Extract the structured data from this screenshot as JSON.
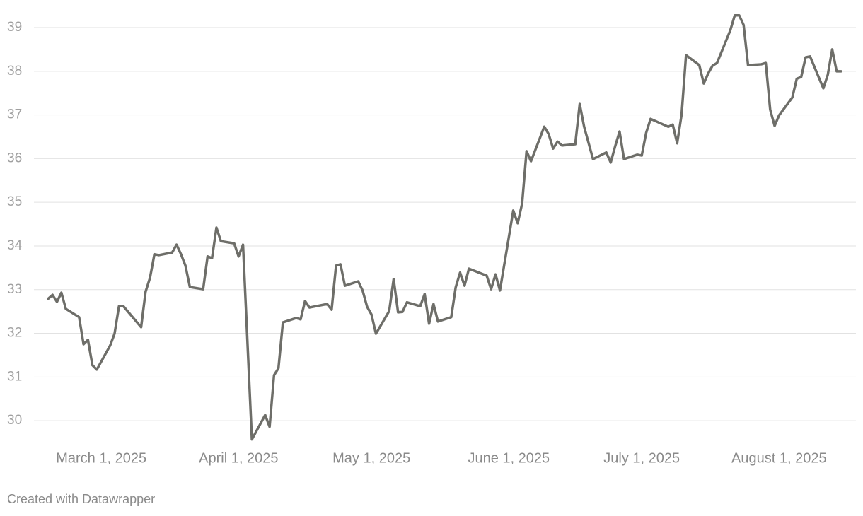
{
  "chart_data": {
    "type": "line",
    "x": [
      "2025-02-17",
      "2025-02-18",
      "2025-02-19",
      "2025-02-20",
      "2025-02-21",
      "2025-02-24",
      "2025-02-25",
      "2025-02-26",
      "2025-02-27",
      "2025-02-28",
      "2025-03-03",
      "2025-03-04",
      "2025-03-05",
      "2025-03-06",
      "2025-03-10",
      "2025-03-11",
      "2025-03-12",
      "2025-03-13",
      "2025-03-14",
      "2025-03-17",
      "2025-03-18",
      "2025-03-19",
      "2025-03-20",
      "2025-03-21",
      "2025-03-24",
      "2025-03-25",
      "2025-03-26",
      "2025-03-27",
      "2025-03-28",
      "2025-03-31",
      "2025-04-01",
      "2025-04-02",
      "2025-04-04",
      "2025-04-07",
      "2025-04-08",
      "2025-04-09",
      "2025-04-10",
      "2025-04-11",
      "2025-04-14",
      "2025-04-15",
      "2025-04-16",
      "2025-04-17",
      "2025-04-21",
      "2025-04-22",
      "2025-04-23",
      "2025-04-24",
      "2025-04-25",
      "2025-04-28",
      "2025-04-29",
      "2025-04-30",
      "2025-05-01",
      "2025-05-02",
      "2025-05-05",
      "2025-05-06",
      "2025-05-07",
      "2025-05-08",
      "2025-05-09",
      "2025-05-12",
      "2025-05-13",
      "2025-05-14",
      "2025-05-15",
      "2025-05-16",
      "2025-05-19",
      "2025-05-20",
      "2025-05-21",
      "2025-05-22",
      "2025-05-23",
      "2025-05-27",
      "2025-05-28",
      "2025-05-29",
      "2025-05-30",
      "2025-06-02",
      "2025-06-03",
      "2025-06-04",
      "2025-06-05",
      "2025-06-06",
      "2025-06-09",
      "2025-06-10",
      "2025-06-11",
      "2025-06-12",
      "2025-06-13",
      "2025-06-16",
      "2025-06-17",
      "2025-06-18",
      "2025-06-20",
      "2025-06-23",
      "2025-06-24",
      "2025-06-25",
      "2025-06-26",
      "2025-06-27",
      "2025-06-30",
      "2025-07-01",
      "2025-07-02",
      "2025-07-03",
      "2025-07-07",
      "2025-07-08",
      "2025-07-09",
      "2025-07-10",
      "2025-07-11",
      "2025-07-14",
      "2025-07-15",
      "2025-07-16",
      "2025-07-17",
      "2025-07-18",
      "2025-07-21",
      "2025-07-22",
      "2025-07-23",
      "2025-07-24",
      "2025-07-25",
      "2025-07-28",
      "2025-07-29",
      "2025-07-30",
      "2025-07-31",
      "2025-08-01",
      "2025-08-04",
      "2025-08-05",
      "2025-08-06",
      "2025-08-07",
      "2025-08-08",
      "2025-08-11",
      "2025-08-12",
      "2025-08-13",
      "2025-08-14",
      "2025-08-15"
    ],
    "values": [
      32.79,
      32.88,
      32.72,
      32.93,
      32.56,
      32.37,
      31.75,
      31.85,
      31.27,
      31.17,
      31.72,
      31.99,
      32.62,
      32.62,
      32.14,
      32.95,
      33.27,
      33.81,
      33.79,
      33.85,
      34.03,
      33.81,
      33.55,
      33.06,
      33.01,
      33.76,
      33.72,
      34.42,
      34.11,
      34.06,
      33.76,
      34.03,
      29.57,
      30.13,
      29.86,
      31.04,
      31.2,
      32.25,
      32.35,
      32.32,
      32.74,
      32.59,
      32.67,
      32.54,
      33.55,
      33.58,
      33.09,
      33.19,
      32.98,
      32.61,
      32.43,
      31.99,
      32.51,
      33.24,
      32.48,
      32.49,
      32.71,
      32.62,
      32.9,
      32.22,
      32.67,
      32.27,
      32.37,
      33.05,
      33.39,
      33.09,
      33.48,
      33.32,
      33.01,
      33.35,
      32.98,
      34.81,
      34.52,
      34.97,
      36.17,
      35.94,
      36.73,
      36.56,
      36.23,
      36.39,
      36.3,
      36.33,
      37.25,
      36.73,
      35.99,
      36.14,
      35.91,
      36.28,
      36.62,
      35.99,
      36.09,
      36.07,
      36.59,
      36.91,
      36.73,
      36.78,
      36.35,
      37.01,
      38.37,
      38.14,
      37.72,
      37.95,
      38.13,
      38.19,
      38.94,
      39.28,
      39.28,
      39.06,
      38.14,
      38.16,
      38.19,
      37.12,
      36.75,
      36.99,
      37.4,
      37.83,
      37.87,
      38.32,
      38.34,
      37.61,
      37.92,
      38.5,
      38,
      38
    ],
    "color": "#6e6e69",
    "xlim": [
      "2025-02-17",
      "2025-08-15"
    ],
    "xticks": [
      {
        "value": "2025-03-01",
        "label": "March 1, 2025"
      },
      {
        "value": "2025-04-01",
        "label": "April 1, 2025"
      },
      {
        "value": "2025-05-01",
        "label": "May 1, 2025"
      },
      {
        "value": "2025-06-01",
        "label": "June 1, 2025"
      },
      {
        "value": "2025-07-01",
        "label": "July 1, 2025"
      },
      {
        "value": "2025-08-01",
        "label": "August 1, 2025"
      }
    ],
    "ylim": [
      29.5,
      39.3
    ],
    "yticks": [
      30,
      31,
      32,
      33,
      34,
      35,
      36,
      37,
      38,
      39
    ],
    "grid": true,
    "notes": "Created with Datawrapper"
  }
}
